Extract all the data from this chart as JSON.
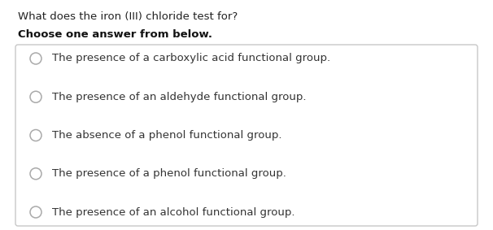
{
  "question": "What does the iron (III) chloride test for?",
  "instruction": "Choose one answer from below.",
  "options": [
    "The presence of a carboxylic acid functional group.",
    "The presence of an aldehyde functional group.",
    "The absence of a phenol functional group.",
    "The presence of a phenol functional group.",
    "The presence of an alcohol functional group."
  ],
  "bg_color": "#ffffff",
  "box_bg_color": "#ffffff",
  "box_border_color": "#c8c8c8",
  "question_color": "#222222",
  "instruction_color": "#111111",
  "option_color": "#333333",
  "circle_edge_color": "#aaaaaa",
  "question_fontsize": 9.5,
  "instruction_fontsize": 9.5,
  "option_fontsize": 9.5,
  "fig_width": 6.06,
  "fig_height": 2.83
}
